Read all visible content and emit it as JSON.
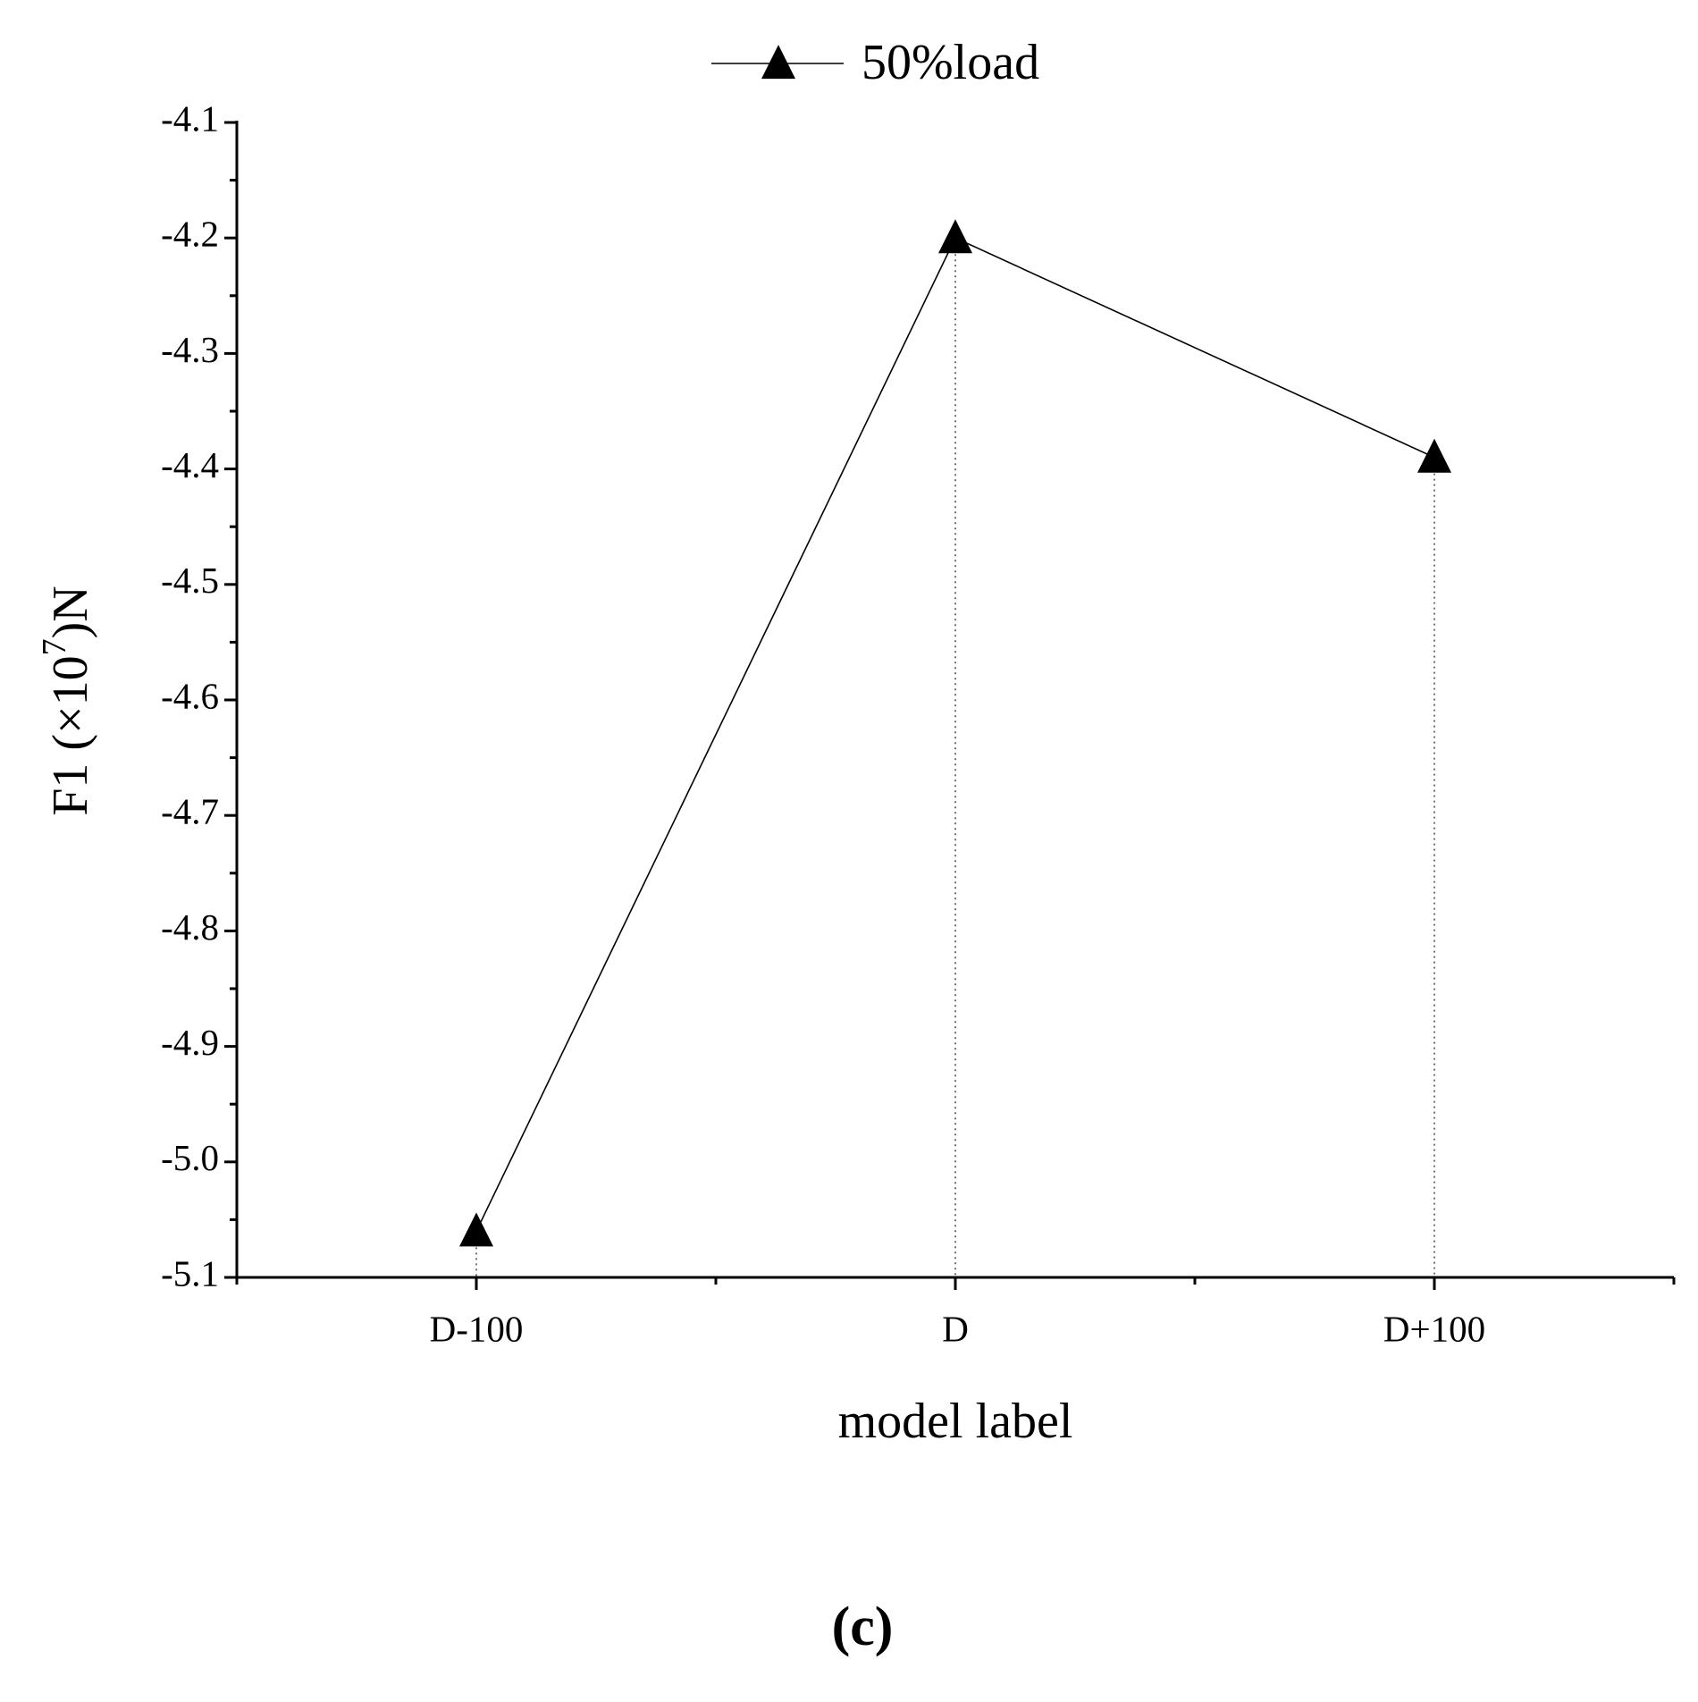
{
  "chart_data": {
    "type": "line",
    "x_label": "model label",
    "y_label": {
      "text": "F1 (×10",
      "superscript": "7",
      "suffix": ")N"
    },
    "panel_label": "(c)",
    "categories": [
      "D-100",
      "D",
      "D+100"
    ],
    "series": [
      {
        "name": "50%load",
        "color": "#000000",
        "values": [
          -5.06,
          -4.2,
          -4.39
        ]
      }
    ],
    "ylim": [
      -5.1,
      -4.1
    ],
    "yticks": [
      -5.1,
      {
        "value": -5,
        "label": "-5.0"
      },
      -4.9,
      -4.8,
      -4.7,
      -4.6,
      -4.5,
      -4.4,
      -4.3,
      -4.2,
      -4.1
    ],
    "drop_lines": true,
    "legend": "top"
  }
}
